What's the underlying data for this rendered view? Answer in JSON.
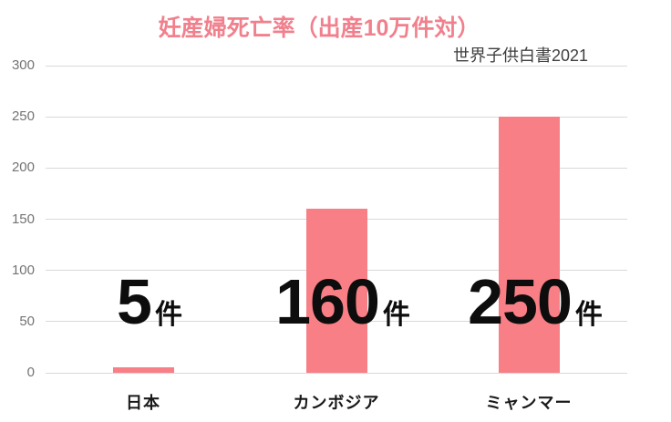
{
  "chart_data": {
    "type": "bar",
    "title": "妊産婦死亡率（出産10万件対）",
    "source": "世界子供白書2021",
    "categories": [
      "日本",
      "カンボジア",
      "ミャンマー"
    ],
    "values": [
      5,
      160,
      250
    ],
    "value_unit": "件",
    "value_labels": [
      "5件",
      "160件",
      "250件"
    ],
    "yticks": [
      0,
      50,
      100,
      150,
      200,
      250,
      300
    ],
    "ylim": [
      0,
      300
    ],
    "xlabel": "",
    "ylabel": "",
    "grid": true,
    "legend": false,
    "colors": {
      "bar": "#f87f85",
      "title": "#f1808d",
      "gridline": "#d9d9d9",
      "tick_text": "#737373",
      "source_text": "#3f3f3f",
      "label_text": "#0d0d0d",
      "category_text": "#1a1a1a",
      "background": "#ffffff"
    }
  }
}
